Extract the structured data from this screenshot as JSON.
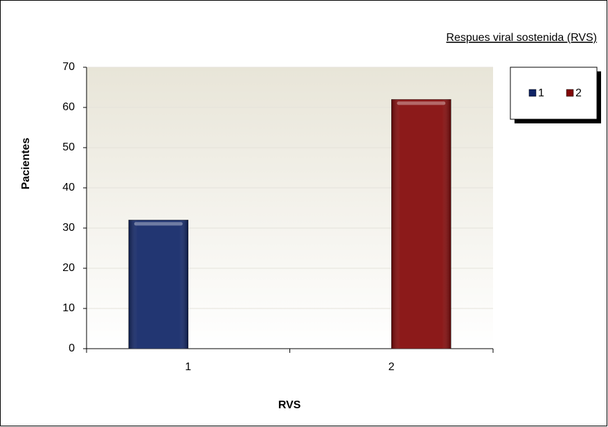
{
  "chart_data": {
    "type": "bar",
    "title": "Respues viral sostenida (RVS)",
    "xlabel": "RVS",
    "ylabel": "Pacientes",
    "categories": [
      "1",
      "2"
    ],
    "series": [
      {
        "name": "1",
        "color": "#0f2466",
        "values": [
          32,
          null
        ]
      },
      {
        "name": "2",
        "color": "#820606",
        "values": [
          null,
          62
        ]
      }
    ],
    "ylim": [
      0,
      70
    ],
    "yticks": [
      0,
      10,
      20,
      30,
      40,
      50,
      60,
      70
    ],
    "grid": true,
    "legend": "right"
  }
}
